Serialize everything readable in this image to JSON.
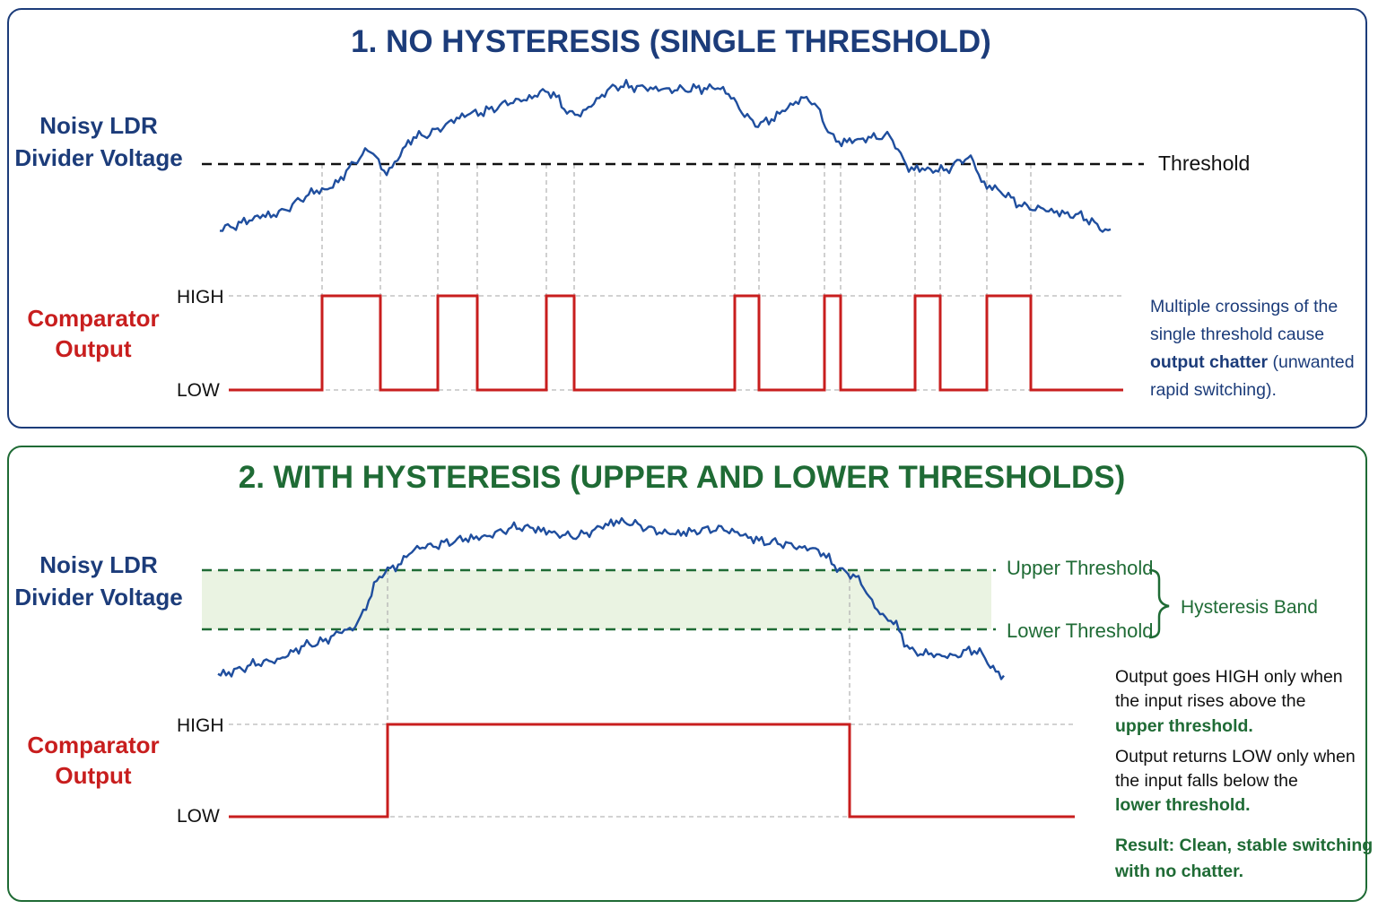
{
  "colors": {
    "blue": "#1c3c7a",
    "signal": "#1f4e9e",
    "red": "#c81e1e",
    "green": "#1f6b35",
    "band": "#eaf3e2",
    "guide": "#b0b0b0"
  },
  "panel1": {
    "title": "1. NO HYSTERESIS (SINGLE THRESHOLD)",
    "signal_label_1": "Noisy LDR",
    "signal_label_2": "Divider Voltage",
    "threshold_label": "Threshold",
    "output_label_1": "Comparator",
    "output_label_2": "Output",
    "high_label": "HIGH",
    "low_label": "LOW",
    "note_line1": "Multiple crossings of the",
    "note_line2": "single threshold cause",
    "note_bold": "output chatter",
    "note_rest": " (unwanted",
    "note_line4": "rapid switching)."
  },
  "panel2": {
    "title": "2. WITH HYSTERESIS (UPPER AND LOWER THRESHOLDS)",
    "signal_label_1": "Noisy LDR",
    "signal_label_2": "Divider Voltage",
    "upper_label": "Upper Threshold",
    "lower_label": "Lower Threshold",
    "band_label": "Hysteresis Band",
    "output_label_1": "Comparator",
    "output_label_2": "Output",
    "high_label": "HIGH",
    "low_label": "LOW",
    "note1_line1": "Output goes HIGH only when",
    "note1_line2": "the input rises above the",
    "note1_line3": "upper threshold.",
    "note2_line1": "Output returns LOW only when",
    "note2_line2": "the input falls below the",
    "note2_line3": "lower threshold.",
    "result_line1": "Result: Clean, stable switching",
    "result_line2": "with no chatter."
  }
}
